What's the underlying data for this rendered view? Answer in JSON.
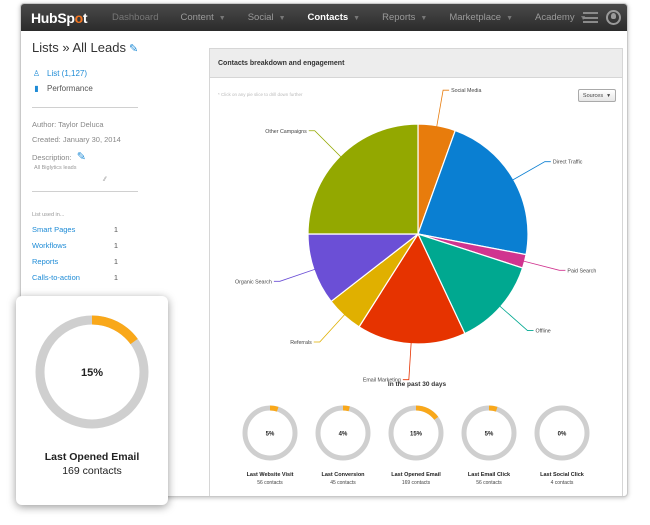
{
  "nav": {
    "logo_pre": "HubSp",
    "logo_o": "o",
    "logo_post": "t",
    "items": [
      {
        "label": "Dashboard",
        "caret": false,
        "state": "dim"
      },
      {
        "label": "Content",
        "caret": true,
        "state": "normal"
      },
      {
        "label": "Social",
        "caret": true,
        "state": "normal"
      },
      {
        "label": "Contacts",
        "caret": true,
        "state": "active"
      },
      {
        "label": "Reports",
        "caret": true,
        "state": "normal"
      },
      {
        "label": "Marketplace",
        "caret": true,
        "state": "normal"
      },
      {
        "label": "Academy",
        "caret": true,
        "state": "normal"
      }
    ]
  },
  "sidebar": {
    "title": "Lists » All Leads",
    "links": [
      {
        "label": "List (1,127)",
        "icon": "user-icon"
      },
      {
        "label": "Performance",
        "icon": "bar-chart-icon"
      }
    ],
    "author": "Author: Taylor Deluca",
    "created": "Created: January 30, 2014",
    "description_label": "Description:",
    "description_value": "All Biglytics leads",
    "used_in_label": "List used in...",
    "used_in": [
      {
        "label": "Smart Pages",
        "count": "1"
      },
      {
        "label": "Workflows",
        "count": "1"
      },
      {
        "label": "Reports",
        "count": "1"
      },
      {
        "label": "Calls-to-action",
        "count": "1"
      }
    ]
  },
  "panel": {
    "title": "Contacts breakdown and engagement",
    "hint": "* Click on any pie slice to drill down further",
    "sources_label": "Sources",
    "period_label": "In the past 30 days"
  },
  "chart_data": [
    {
      "type": "pie",
      "categories": [
        "Social Media",
        "Direct Traffic",
        "Paid Search",
        "Offline",
        "Email Marketing",
        "Referrals",
        "Organic Search",
        "Other Campaigns"
      ],
      "values": [
        5.5,
        22.5,
        2,
        13,
        16,
        5.5,
        10.5,
        25
      ],
      "colors": [
        "#e87c0c",
        "#0a7fd2",
        "#d0348f",
        "#00a890",
        "#e63300",
        "#e0b000",
        "#6b4fd6",
        "#93a800"
      ]
    },
    {
      "type": "donut-gauges",
      "items": [
        {
          "label": "Last Website Visit",
          "percent": 5,
          "contacts": "56 contacts"
        },
        {
          "label": "Last Conversion",
          "percent": 4,
          "contacts": "45 contacts"
        },
        {
          "label": "Last Opened Email",
          "percent": 15,
          "contacts": "169 contacts"
        },
        {
          "label": "Last Email Click",
          "percent": 5,
          "contacts": "56 contacts"
        },
        {
          "label": "Last Social Click",
          "percent": 0,
          "contacts": "4 contacts"
        }
      ]
    }
  ],
  "featured_card": {
    "label": "Last Opened Email",
    "percent": 15,
    "contacts": "169 contacts"
  },
  "colors": {
    "accent_orange": "#f9a81a",
    "ring_gray": "#cfcfcf",
    "link_blue": "#1e8bd6"
  }
}
